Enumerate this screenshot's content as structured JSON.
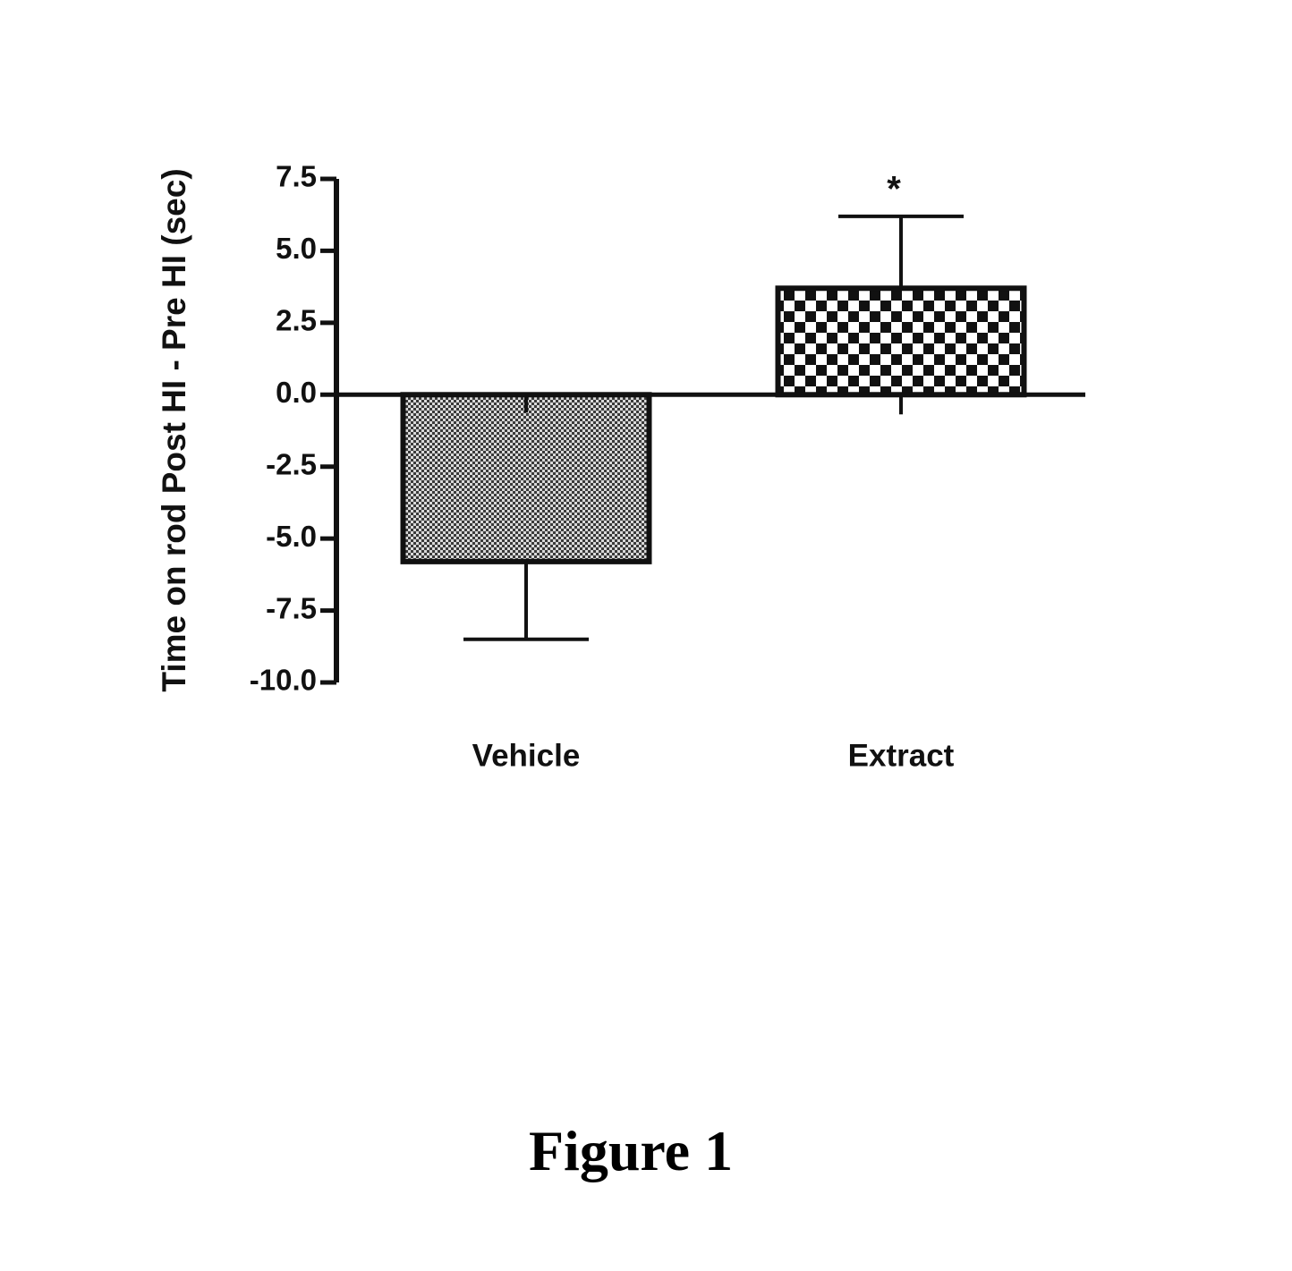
{
  "chart_data": {
    "type": "bar",
    "ylabel": "Time on rod Post HI - Pre HI (sec)",
    "categories": [
      "Vehicle",
      "Extract"
    ],
    "values": [
      -5.8,
      3.7
    ],
    "error": [
      2.7,
      2.5
    ],
    "error_direction": [
      "down",
      "up"
    ],
    "patterns": [
      "fine-dot",
      "checkerboard"
    ],
    "ylim": [
      -10.0,
      7.5
    ],
    "yticks": [
      "7.5",
      "5.0",
      "2.5",
      "0.0",
      "-2.5",
      "-5.0",
      "-7.5",
      "-10.0"
    ],
    "annotations": [
      {
        "category": "Extract",
        "text": "*"
      }
    ],
    "grid": false
  },
  "figure": {
    "caption": "Figure 1"
  },
  "colors": {
    "ink": "#111111",
    "background": "#ffffff"
  }
}
